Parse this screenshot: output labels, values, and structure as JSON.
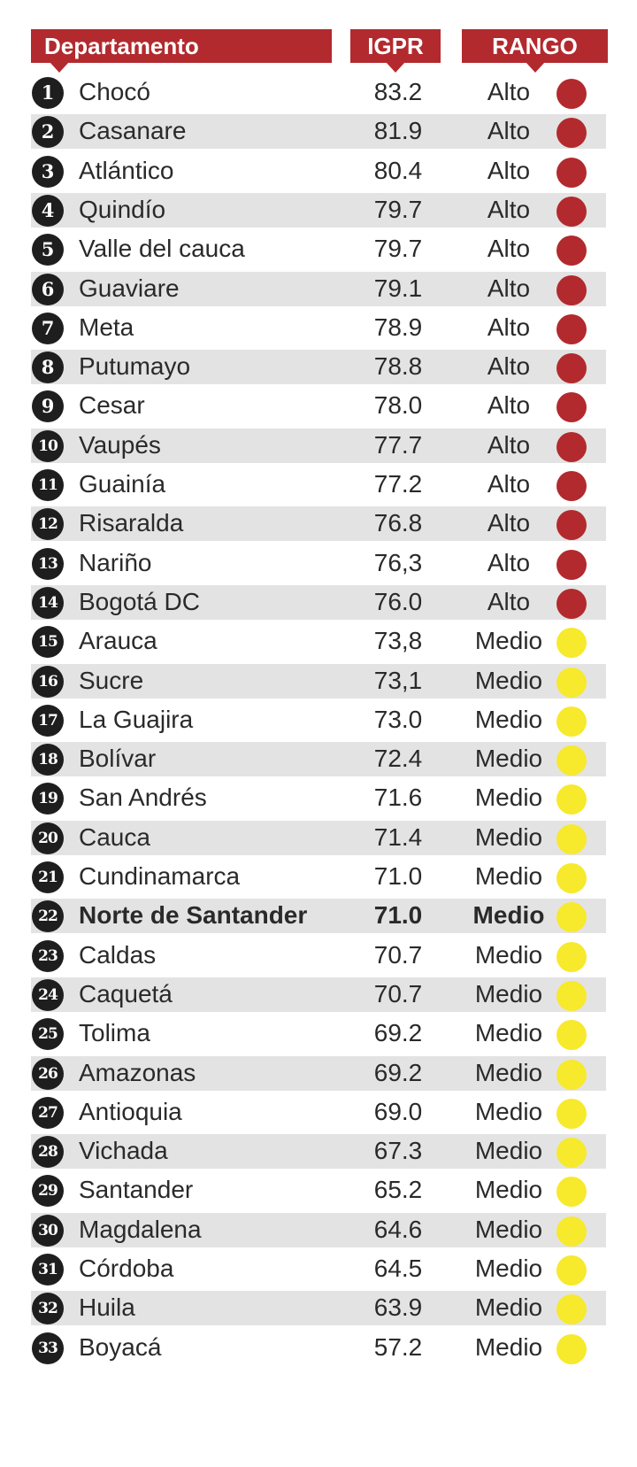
{
  "chart_data": {
    "type": "table",
    "columns": [
      "Departamento",
      "IGPR",
      "RANGO"
    ],
    "highlight_rank": 22,
    "range_colors": {
      "Alto": "#b22a2e",
      "Medio": "#f7e92c"
    },
    "rows": [
      {
        "rank": "1",
        "name": "Chocó",
        "igpr": "83.2",
        "rango": "Alto"
      },
      {
        "rank": "2",
        "name": "Casanare",
        "igpr": "81.9",
        "rango": "Alto"
      },
      {
        "rank": "3",
        "name": "Atlántico",
        "igpr": "80.4",
        "rango": "Alto"
      },
      {
        "rank": "4",
        "name": "Quindío",
        "igpr": "79.7",
        "rango": "Alto"
      },
      {
        "rank": "5",
        "name": "Valle del cauca",
        "igpr": "79.7",
        "rango": "Alto"
      },
      {
        "rank": "6",
        "name": "Guaviare",
        "igpr": "79.1",
        "rango": "Alto"
      },
      {
        "rank": "7",
        "name": "Meta",
        "igpr": "78.9",
        "rango": "Alto"
      },
      {
        "rank": "8",
        "name": "Putumayo",
        "igpr": "78.8",
        "rango": "Alto"
      },
      {
        "rank": "9",
        "name": "Cesar",
        "igpr": "78.0",
        "rango": "Alto"
      },
      {
        "rank": "10",
        "name": "Vaupés",
        "igpr": "77.7",
        "rango": "Alto"
      },
      {
        "rank": "11",
        "name": "Guainía",
        "igpr": "77.2",
        "rango": "Alto"
      },
      {
        "rank": "12",
        "name": "Risaralda",
        "igpr": "76.8",
        "rango": "Alto"
      },
      {
        "rank": "13",
        "name": "Nariño",
        "igpr": "76,3",
        "rango": "Alto"
      },
      {
        "rank": "14",
        "name": "Bogotá DC",
        "igpr": "76.0",
        "rango": "Alto"
      },
      {
        "rank": "15",
        "name": "Arauca",
        "igpr": "73,8",
        "rango": "Medio"
      },
      {
        "rank": "16",
        "name": "Sucre",
        "igpr": "73,1",
        "rango": "Medio"
      },
      {
        "rank": "17",
        "name": "La Guajira",
        "igpr": "73.0",
        "rango": "Medio"
      },
      {
        "rank": "18",
        "name": "Bolívar",
        "igpr": "72.4",
        "rango": "Medio"
      },
      {
        "rank": "19",
        "name": "San Andrés",
        "igpr": "71.6",
        "rango": "Medio"
      },
      {
        "rank": "20",
        "name": "Cauca",
        "igpr": "71.4",
        "rango": "Medio"
      },
      {
        "rank": "21",
        "name": "Cundinamarca",
        "igpr": "71.0",
        "rango": "Medio"
      },
      {
        "rank": "22",
        "name": "Norte de Santander",
        "igpr": "71.0",
        "rango": "Medio"
      },
      {
        "rank": "23",
        "name": "Caldas",
        "igpr": "70.7",
        "rango": "Medio"
      },
      {
        "rank": "24",
        "name": "Caquetá",
        "igpr": "70.7",
        "rango": "Medio"
      },
      {
        "rank": "25",
        "name": "Tolima",
        "igpr": "69.2",
        "rango": "Medio"
      },
      {
        "rank": "26",
        "name": "Amazonas",
        "igpr": "69.2",
        "rango": "Medio"
      },
      {
        "rank": "27",
        "name": "Antioquia",
        "igpr": "69.0",
        "rango": "Medio"
      },
      {
        "rank": "28",
        "name": "Vichada",
        "igpr": "67.3",
        "rango": "Medio"
      },
      {
        "rank": "29",
        "name": "Santander",
        "igpr": "65.2",
        "rango": "Medio"
      },
      {
        "rank": "30",
        "name": "Magdalena",
        "igpr": "64.6",
        "rango": "Medio"
      },
      {
        "rank": "31",
        "name": "Córdoba",
        "igpr": "64.5",
        "rango": "Medio"
      },
      {
        "rank": "32",
        "name": "Huila",
        "igpr": "63.9",
        "rango": "Medio"
      },
      {
        "rank": "33",
        "name": "Boyacá",
        "igpr": "57.2",
        "rango": "Medio"
      }
    ]
  }
}
